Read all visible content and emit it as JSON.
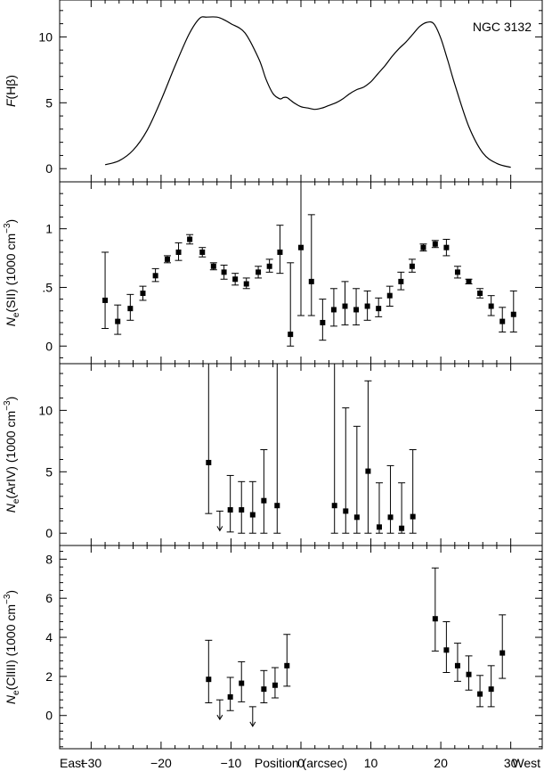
{
  "figure": {
    "bottom_left_label": "East",
    "bottom_right_label": "West",
    "xlabel": "Position (arcsec)",
    "xlim": [
      -34.5,
      34.5
    ],
    "xticks": [
      -30,
      -20,
      -10,
      0,
      10,
      20,
      30
    ],
    "xtick_labels": [
      "−30",
      "−20",
      "−10",
      "0",
      "10",
      "20",
      "30"
    ]
  },
  "chart_data": [
    {
      "type": "line",
      "panel": "hbeta",
      "ylabel_main": "F",
      "ylabel_rest": "(Hβ)",
      "annotation": "NGC 3132",
      "ylim": [
        -1,
        12.8
      ],
      "yticks": [
        0,
        5,
        10
      ],
      "ytick_labels": [
        "0",
        "5",
        "10"
      ],
      "x": [
        -28,
        -26,
        -24,
        -22,
        -20,
        -18,
        -16,
        -14.5,
        -13.5,
        -12,
        -11,
        -10,
        -8,
        -6,
        -5,
        -4,
        -3,
        -2.5,
        -2,
        -1.5,
        -1,
        0,
        1,
        2,
        3,
        4,
        5,
        6,
        7,
        8,
        9,
        10,
        11,
        12,
        13,
        14,
        15,
        16,
        17,
        18,
        19,
        20,
        21,
        22,
        24,
        26,
        28,
        30
      ],
      "y": [
        0.3,
        0.6,
        1.4,
        2.9,
        5.2,
        7.8,
        10.2,
        11.4,
        11.5,
        11.5,
        11.3,
        11.0,
        10.3,
        8.3,
        6.8,
        5.7,
        5.3,
        5.4,
        5.4,
        5.2,
        5.0,
        4.7,
        4.6,
        4.5,
        4.6,
        4.8,
        5.0,
        5.3,
        5.7,
        6.0,
        6.2,
        6.6,
        7.2,
        7.8,
        8.5,
        9.1,
        9.6,
        10.2,
        10.8,
        11.1,
        11.0,
        9.9,
        8.2,
        6.4,
        3.2,
        1.2,
        0.4,
        0.1
      ]
    },
    {
      "type": "scatter",
      "panel": "ne_sii",
      "ylabel_main": "N",
      "ylabel_sub": "e",
      "ylabel_rest": "(SII) (1000 cm",
      "ylabel_sup": "−3",
      "ylabel_close": ")",
      "ylim": [
        -0.15,
        1.4
      ],
      "yticks": [
        0,
        0.5,
        1
      ],
      "ytick_labels": [
        "0",
        ".5",
        "1"
      ],
      "points": [
        {
          "x": -28,
          "y": 0.39,
          "lo": 0.15,
          "hi": 0.8
        },
        {
          "x": -26.2,
          "y": 0.21,
          "lo": 0.1,
          "hi": 0.35
        },
        {
          "x": -24.4,
          "y": 0.32,
          "lo": 0.22,
          "hi": 0.44
        },
        {
          "x": -22.6,
          "y": 0.45,
          "lo": 0.39,
          "hi": 0.51
        },
        {
          "x": -20.8,
          "y": 0.6,
          "lo": 0.55,
          "hi": 0.66
        },
        {
          "x": -19.1,
          "y": 0.74,
          "lo": 0.71,
          "hi": 0.77
        },
        {
          "x": -17.5,
          "y": 0.8,
          "lo": 0.73,
          "hi": 0.88
        },
        {
          "x": -15.9,
          "y": 0.91,
          "lo": 0.87,
          "hi": 0.95
        },
        {
          "x": -14.1,
          "y": 0.8,
          "lo": 0.76,
          "hi": 0.84
        },
        {
          "x": -12.5,
          "y": 0.68,
          "lo": 0.65,
          "hi": 0.71
        },
        {
          "x": -11.0,
          "y": 0.63,
          "lo": 0.57,
          "hi": 0.69
        },
        {
          "x": -9.4,
          "y": 0.57,
          "lo": 0.52,
          "hi": 0.62
        },
        {
          "x": -7.8,
          "y": 0.53,
          "lo": 0.49,
          "hi": 0.58
        },
        {
          "x": -6.1,
          "y": 0.63,
          "lo": 0.58,
          "hi": 0.68
        },
        {
          "x": -4.5,
          "y": 0.68,
          "lo": 0.63,
          "hi": 0.74
        },
        {
          "x": -3.0,
          "y": 0.8,
          "lo": 0.62,
          "hi": 1.03
        },
        {
          "x": -1.5,
          "y": 0.1,
          "lo": 0.0,
          "hi": 0.71
        },
        {
          "x": 0.0,
          "y": 0.84,
          "lo": 0.26,
          "hi": 1.4
        },
        {
          "x": 1.5,
          "y": 0.55,
          "lo": 0.26,
          "hi": 1.12
        },
        {
          "x": 3.1,
          "y": 0.2,
          "lo": 0.05,
          "hi": 0.4
        },
        {
          "x": 4.7,
          "y": 0.31,
          "lo": 0.17,
          "hi": 0.49
        },
        {
          "x": 6.3,
          "y": 0.34,
          "lo": 0.18,
          "hi": 0.55
        },
        {
          "x": 7.9,
          "y": 0.31,
          "lo": 0.18,
          "hi": 0.49
        },
        {
          "x": 9.5,
          "y": 0.34,
          "lo": 0.22,
          "hi": 0.47
        },
        {
          "x": 11.1,
          "y": 0.32,
          "lo": 0.25,
          "hi": 0.41
        },
        {
          "x": 12.7,
          "y": 0.43,
          "lo": 0.34,
          "hi": 0.51
        },
        {
          "x": 14.3,
          "y": 0.55,
          "lo": 0.48,
          "hi": 0.63
        },
        {
          "x": 15.9,
          "y": 0.68,
          "lo": 0.63,
          "hi": 0.74
        },
        {
          "x": 17.5,
          "y": 0.84,
          "lo": 0.81,
          "hi": 0.87
        },
        {
          "x": 19.2,
          "y": 0.87,
          "lo": 0.84,
          "hi": 0.9
        },
        {
          "x": 20.8,
          "y": 0.84,
          "lo": 0.77,
          "hi": 0.91
        },
        {
          "x": 22.4,
          "y": 0.63,
          "lo": 0.58,
          "hi": 0.68
        },
        {
          "x": 24.0,
          "y": 0.55,
          "lo": 0.53,
          "hi": 0.57
        },
        {
          "x": 25.6,
          "y": 0.45,
          "lo": 0.41,
          "hi": 0.49
        },
        {
          "x": 27.2,
          "y": 0.34,
          "lo": 0.26,
          "hi": 0.43
        },
        {
          "x": 28.8,
          "y": 0.21,
          "lo": 0.12,
          "hi": 0.33
        },
        {
          "x": 30.4,
          "y": 0.27,
          "lo": 0.12,
          "hi": 0.47
        }
      ],
      "upper_limits": []
    },
    {
      "type": "scatter",
      "panel": "ne_ariv",
      "ylabel_main": "N",
      "ylabel_sub": "e",
      "ylabel_rest": "(ArIV) (1000 cm",
      "ylabel_sup": "−3",
      "ylabel_close": ")",
      "ylim": [
        -1,
        13.8
      ],
      "yticks": [
        0,
        5,
        10
      ],
      "ytick_labels": [
        "0",
        "5",
        "10"
      ],
      "points": [
        {
          "x": -13.2,
          "y": 5.75,
          "lo": 1.6,
          "hi": 13.8
        },
        {
          "x": -10.1,
          "y": 1.9,
          "lo": 0.1,
          "hi": 4.7
        },
        {
          "x": -8.5,
          "y": 1.9,
          "lo": 0.0,
          "hi": 4.2
        },
        {
          "x": -6.9,
          "y": 1.5,
          "lo": 0.0,
          "hi": 4.2
        },
        {
          "x": -5.3,
          "y": 2.65,
          "lo": 0.0,
          "hi": 6.8
        },
        {
          "x": -3.4,
          "y": 2.25,
          "lo": 0.0,
          "hi": 13.8
        },
        {
          "x": 4.8,
          "y": 2.25,
          "lo": 0.0,
          "hi": 13.8
        },
        {
          "x": 6.4,
          "y": 1.8,
          "lo": 0.0,
          "hi": 10.2
        },
        {
          "x": 8.0,
          "y": 1.3,
          "lo": 0.0,
          "hi": 8.7
        },
        {
          "x": 9.6,
          "y": 5.05,
          "lo": 0.0,
          "hi": 12.4
        },
        {
          "x": 11.2,
          "y": 0.5,
          "lo": 0.0,
          "hi": 4.1
        },
        {
          "x": 12.8,
          "y": 1.3,
          "lo": 0.0,
          "hi": 5.5
        },
        {
          "x": 14.4,
          "y": 0.4,
          "lo": 0.0,
          "hi": 4.1
        },
        {
          "x": 16.0,
          "y": 1.35,
          "lo": 0.0,
          "hi": 6.8
        }
      ],
      "upper_limits": [
        {
          "x": -11.6,
          "y": 1.8
        }
      ]
    },
    {
      "type": "scatter",
      "panel": "ne_cliii",
      "ylabel_main": "N",
      "ylabel_sub": "e",
      "ylabel_rest": "(ClIII) (1000 cm",
      "ylabel_sup": "−3",
      "ylabel_close": ")",
      "ylim": [
        -1.7,
        8.7
      ],
      "yticks": [
        0,
        2,
        4,
        6,
        8
      ],
      "ytick_labels": [
        "0",
        "2",
        "4",
        "6",
        "8"
      ],
      "points": [
        {
          "x": -13.2,
          "y": 1.85,
          "lo": 0.65,
          "hi": 3.85
        },
        {
          "x": -10.1,
          "y": 0.95,
          "lo": 0.25,
          "hi": 1.95
        },
        {
          "x": -8.5,
          "y": 1.65,
          "lo": 0.7,
          "hi": 2.75
        },
        {
          "x": -5.3,
          "y": 1.35,
          "lo": 0.65,
          "hi": 2.3
        },
        {
          "x": -3.7,
          "y": 1.55,
          "lo": 0.9,
          "hi": 2.45
        },
        {
          "x": -2.0,
          "y": 2.55,
          "lo": 1.5,
          "hi": 4.15
        },
        {
          "x": 19.2,
          "y": 4.95,
          "lo": 3.3,
          "hi": 7.55
        },
        {
          "x": 20.8,
          "y": 3.35,
          "lo": 2.2,
          "hi": 4.8
        },
        {
          "x": 22.4,
          "y": 2.55,
          "lo": 1.75,
          "hi": 3.7
        },
        {
          "x": 24.0,
          "y": 2.1,
          "lo": 1.3,
          "hi": 3.05
        },
        {
          "x": 25.6,
          "y": 1.1,
          "lo": 0.45,
          "hi": 2.05
        },
        {
          "x": 27.2,
          "y": 1.35,
          "lo": 0.45,
          "hi": 2.55
        },
        {
          "x": 28.8,
          "y": 3.2,
          "lo": 1.9,
          "hi": 5.15
        }
      ],
      "upper_limits": [
        {
          "x": -11.6,
          "y": 0.8
        },
        {
          "x": -6.9,
          "y": 0.45
        }
      ]
    }
  ]
}
